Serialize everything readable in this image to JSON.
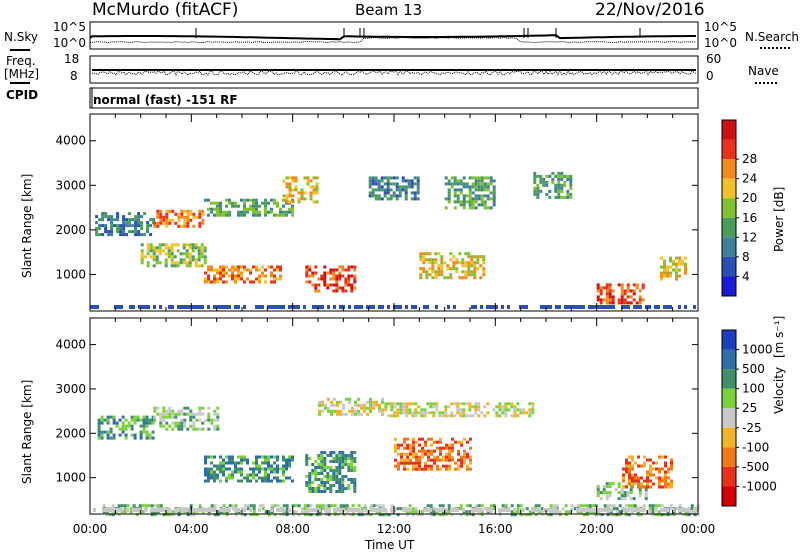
{
  "header": {
    "station": "McMurdo (fitACF)",
    "beam": "Beam 13",
    "date": "22/Nov/2016"
  },
  "noise_panel": {
    "left_label": "N.Sky",
    "right_label": "N.Search",
    "right_label_style": "dotted",
    "left_ticks": [
      "10^5",
      "10^0"
    ],
    "right_ticks": [
      "10^5",
      "10^0"
    ]
  },
  "freq_panel": {
    "left_label_line1": "Freq.",
    "left_label_line2": "[MHz]",
    "left_ticks": [
      "18",
      "8"
    ],
    "right_label": "Nave",
    "right_label_style": "dotted",
    "right_ticks": [
      "60",
      "0"
    ]
  },
  "cpid_panel": {
    "left_label": "CPID",
    "program": "normal (fast) -151 RF"
  },
  "time_axis": {
    "label": "Time UT",
    "ticks": [
      "00:00",
      "04:00",
      "08:00",
      "12:00",
      "16:00",
      "20:00",
      "00:00"
    ]
  },
  "chart_data": [
    {
      "type": "heatmap",
      "name": "power",
      "xlabel": "Time UT",
      "ylabel": "Slant Range [km]",
      "x_ticks": [
        "00:00",
        "04:00",
        "08:00",
        "12:00",
        "16:00",
        "20:00",
        "00:00"
      ],
      "xlim_hours": [
        0,
        24
      ],
      "ylim_km": [
        180,
        4600
      ],
      "y_ticks": [
        1000,
        2000,
        3000,
        4000
      ],
      "colorbar": {
        "label": "Power [dB]",
        "ticks": [
          "4",
          "8",
          "12",
          "16",
          "20",
          "24",
          "28"
        ],
        "colors": [
          "#1b1bd6",
          "#2a4fb5",
          "#3f7f9a",
          "#4a9c5e",
          "#7fc22b",
          "#f2c02a",
          "#f08a1c",
          "#e8321c",
          "#d01010"
        ]
      },
      "echo_regions": [
        {
          "t0": 0.2,
          "t1": 2.5,
          "r0": 1900,
          "r1": 2400,
          "level": 2
        },
        {
          "t0": 2.5,
          "t1": 4.5,
          "r0": 2050,
          "r1": 2450,
          "level": 6
        },
        {
          "t0": 4.5,
          "t1": 8.0,
          "r0": 2300,
          "r1": 2700,
          "level": 3
        },
        {
          "t0": 7.6,
          "t1": 9.0,
          "r0": 2600,
          "r1": 3200,
          "level": 5
        },
        {
          "t0": 2.0,
          "t1": 4.5,
          "r0": 1200,
          "r1": 1700,
          "level": 4
        },
        {
          "t0": 4.5,
          "t1": 7.5,
          "r0": 800,
          "r1": 1200,
          "level": 6
        },
        {
          "t0": 8.5,
          "t1": 10.5,
          "r0": 650,
          "r1": 1200,
          "level": 7
        },
        {
          "t0": 11.0,
          "t1": 13.0,
          "r0": 2700,
          "r1": 3200,
          "level": 2
        },
        {
          "t0": 13.0,
          "t1": 15.5,
          "r0": 900,
          "r1": 1500,
          "level": 5
        },
        {
          "t0": 14.0,
          "t1": 16.0,
          "r0": 2500,
          "r1": 3200,
          "level": 3
        },
        {
          "t0": 17.5,
          "t1": 19.0,
          "r0": 2700,
          "r1": 3300,
          "level": 3
        },
        {
          "t0": 20.0,
          "t1": 21.8,
          "r0": 350,
          "r1": 800,
          "level": 7
        },
        {
          "t0": 22.5,
          "t1": 23.5,
          "r0": 900,
          "r1": 1400,
          "level": 5
        }
      ]
    },
    {
      "type": "heatmap",
      "name": "velocity",
      "xlabel": "Time UT",
      "ylabel": "Slant Range [km]",
      "x_ticks": [
        "00:00",
        "04:00",
        "08:00",
        "12:00",
        "16:00",
        "20:00",
        "00:00"
      ],
      "xlim_hours": [
        0,
        24
      ],
      "ylim_km": [
        180,
        4600
      ],
      "y_ticks": [
        1000,
        2000,
        3000,
        4000
      ],
      "colorbar": {
        "label": "Velocity",
        "unit": "[m s⁻¹]",
        "ticks": [
          "1000",
          "500",
          "100",
          "25",
          "-25",
          "-100",
          "-500",
          "-1000"
        ],
        "colors": [
          "#1b3fc0",
          "#2e6fa6",
          "#3f8f6a",
          "#7ad13b",
          "#c8c8c8",
          "#f2b32a",
          "#f07a18",
          "#e8301a",
          "#d00000"
        ]
      },
      "echo_regions": [
        {
          "t0": 0.3,
          "t1": 2.5,
          "r0": 1900,
          "r1": 2400,
          "level": 2
        },
        {
          "t0": 2.5,
          "t1": 5.0,
          "r0": 2100,
          "r1": 2600,
          "level": 3
        },
        {
          "t0": 4.5,
          "t1": 8.0,
          "r0": 900,
          "r1": 1500,
          "level": 2
        },
        {
          "t0": 8.5,
          "t1": 10.5,
          "r0": 700,
          "r1": 1600,
          "level": 2
        },
        {
          "t0": 9.0,
          "t1": 11.5,
          "r0": 2400,
          "r1": 2800,
          "level": 4
        },
        {
          "t0": 11.5,
          "t1": 17.5,
          "r0": 2400,
          "r1": 2700,
          "level": 4
        },
        {
          "t0": 12.0,
          "t1": 15.0,
          "r0": 1200,
          "r1": 1900,
          "level": 6
        },
        {
          "t0": 20.0,
          "t1": 22.0,
          "r0": 500,
          "r1": 900,
          "level": 3
        },
        {
          "t0": 21.0,
          "t1": 23.0,
          "r0": 800,
          "r1": 1500,
          "level": 6
        },
        {
          "t0": 0.5,
          "t1": 24.0,
          "r0": 180,
          "r1": 400,
          "level": 3
        }
      ]
    }
  ]
}
